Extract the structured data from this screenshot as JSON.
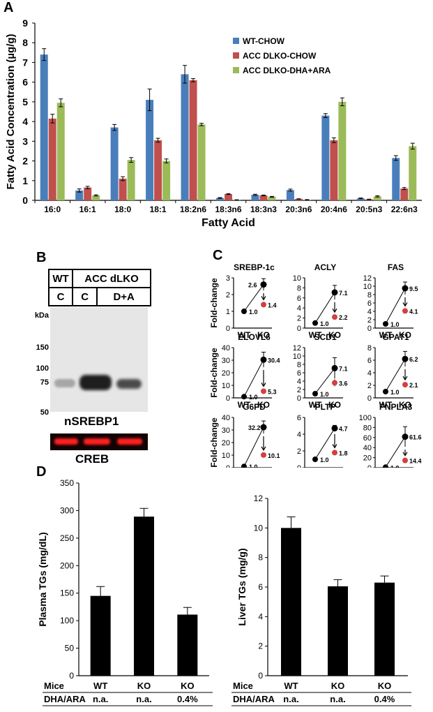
{
  "panels": {
    "a": "A",
    "b": "B",
    "c": "C",
    "d": "D"
  },
  "colors": {
    "wt_chow": "#4a7ebb",
    "dlko_chow": "#c0504d",
    "dlko_dha": "#9bbb59",
    "black": "#000000",
    "ko_treated": "#d43f3f",
    "creb_band": "#ff2020"
  },
  "chart_data": [
    {
      "panel": "A",
      "type": "bar",
      "xlabel": "Fatty Acid",
      "ylabel": "Fatty Acid Concentration (µg/g)",
      "ylim": [
        0,
        9
      ],
      "yticks": [
        0,
        1,
        2,
        3,
        4,
        5,
        6,
        7,
        8,
        9
      ],
      "legend_position": "top-right",
      "categories": [
        "16:0",
        "16:1",
        "18:0",
        "18:1",
        "18:2n6",
        "18:3n6",
        "18:3n3",
        "20:3n6",
        "20:4n6",
        "20:5n3",
        "22:6n3"
      ],
      "series": [
        {
          "name": "WT-CHOW",
          "values": [
            7.4,
            0.5,
            3.7,
            5.1,
            6.4,
            0.12,
            0.28,
            0.52,
            4.3,
            0.1,
            2.15
          ],
          "errors": [
            0.3,
            0.08,
            0.15,
            0.55,
            0.45,
            0.02,
            0.03,
            0.05,
            0.1,
            0.02,
            0.12
          ]
        },
        {
          "name": "ACC DLKO-CHOW",
          "values": [
            4.15,
            0.65,
            1.1,
            3.05,
            6.1,
            0.32,
            0.25,
            0.07,
            3.05,
            0.05,
            0.6
          ],
          "errors": [
            0.22,
            0.06,
            0.1,
            0.1,
            0.08,
            0.02,
            0.02,
            0.01,
            0.12,
            0.01,
            0.05
          ]
        },
        {
          "name": "ACC DLKO-DHA+ARA",
          "values": [
            4.95,
            0.25,
            2.05,
            2.0,
            3.85,
            0.02,
            0.18,
            0.03,
            5.0,
            0.2,
            2.75
          ],
          "errors": [
            0.2,
            0.03,
            0.12,
            0.1,
            0.06,
            0.01,
            0.02,
            0.01,
            0.2,
            0.03,
            0.15
          ]
        }
      ]
    },
    {
      "panel": "C",
      "type": "line",
      "title": "SREBP-1c",
      "ylabel": "Fold-change",
      "ylim": [
        0,
        3
      ],
      "yticks": [
        0,
        1,
        2,
        3
      ],
      "x": [
        "WT",
        "KO"
      ],
      "values": [
        1.0,
        2.6
      ],
      "errors": [
        0,
        0.35
      ],
      "ko_treated": 1.4,
      "ko_treated_error": 0.08,
      "labels": [
        "1.0",
        "2.6",
        "1.4"
      ]
    },
    {
      "panel": "C",
      "type": "line",
      "title": "ACLY",
      "ylabel": "",
      "ylim": [
        0,
        10
      ],
      "yticks": [
        0,
        2,
        4,
        6,
        8,
        10
      ],
      "x": [
        "WT",
        "KO"
      ],
      "values": [
        1.0,
        7.1
      ],
      "errors": [
        0,
        1.4
      ],
      "ko_treated": 2.2,
      "ko_treated_error": 0.5,
      "labels": [
        "1.0",
        "7.1",
        "2.2"
      ]
    },
    {
      "panel": "C",
      "type": "line",
      "title": "FAS",
      "ylabel": "",
      "ylim": [
        0,
        12
      ],
      "yticks": [
        0,
        2,
        4,
        6,
        8,
        10,
        12
      ],
      "x": [
        "WT",
        "KO"
      ],
      "values": [
        1.0,
        9.5
      ],
      "errors": [
        0,
        1.5
      ],
      "ko_treated": 4.1,
      "ko_treated_error": 0.5,
      "labels": [
        "1.0",
        "9.5",
        "4.1"
      ]
    },
    {
      "panel": "C",
      "type": "line",
      "title": "ELOVL6",
      "ylabel": "Fold-change",
      "ylim": [
        0,
        40
      ],
      "yticks": [
        0,
        10,
        20,
        30,
        40
      ],
      "x": [
        "WT",
        "KO"
      ],
      "values": [
        1.0,
        30.4
      ],
      "errors": [
        0,
        6
      ],
      "ko_treated": 5.3,
      "ko_treated_error": 0.8,
      "labels": [
        "1.0",
        "30.4",
        "5.3"
      ]
    },
    {
      "panel": "C",
      "type": "line",
      "title": "SCD1",
      "ylabel": "",
      "ylim": [
        0,
        12
      ],
      "yticks": [
        0,
        2,
        4,
        6,
        8,
        10,
        12
      ],
      "x": [
        "WT",
        "KO"
      ],
      "values": [
        1.0,
        7.1
      ],
      "errors": [
        0,
        2.5
      ],
      "ko_treated": 3.6,
      "ko_treated_error": 0.8,
      "labels": [
        "1.0",
        "7.1",
        "3.6"
      ]
    },
    {
      "panel": "C",
      "type": "line",
      "title": "GPAT1",
      "ylabel": "",
      "ylim": [
        0,
        8
      ],
      "yticks": [
        0,
        2,
        4,
        6,
        8
      ],
      "x": [
        "WT",
        "KO"
      ],
      "values": [
        1.0,
        6.2
      ],
      "errors": [
        0,
        1.2
      ],
      "ko_treated": 2.1,
      "ko_treated_error": 0.4,
      "labels": [
        "1.0",
        "6.2",
        "2.1"
      ]
    },
    {
      "panel": "C",
      "type": "line",
      "title": "G6PD",
      "ylabel": "Fold-change",
      "ylim": [
        0,
        40
      ],
      "yticks": [
        0,
        10,
        20,
        30,
        40
      ],
      "x": [
        "WT",
        "KO"
      ],
      "values": [
        1.0,
        32.2
      ],
      "errors": [
        0,
        5
      ],
      "ko_treated": 10.1,
      "ko_treated_error": 1.8,
      "labels": [
        "1.0",
        "32.2",
        "10.1"
      ]
    },
    {
      "panel": "C",
      "type": "line",
      "title": "PLTP",
      "ylabel": "",
      "ylim": [
        0,
        6
      ],
      "yticks": [
        0,
        2,
        4,
        6
      ],
      "x": [
        "WT",
        "KO"
      ],
      "values": [
        1.0,
        4.7
      ],
      "errors": [
        0,
        0.35
      ],
      "ko_treated": 1.8,
      "ko_treated_error": 0.15,
      "labels": [
        "1.0",
        "4.7",
        "1.8"
      ]
    },
    {
      "panel": "C",
      "type": "line",
      "title": "PNPLA3",
      "ylabel": "",
      "ylim": [
        0,
        100
      ],
      "yticks": [
        0,
        20,
        40,
        60,
        80,
        100
      ],
      "x": [
        "WT",
        "KO"
      ],
      "values": [
        1.0,
        61.6
      ],
      "errors": [
        0,
        20
      ],
      "ko_treated": 14.4,
      "ko_treated_error": 5,
      "labels": [
        "1.0",
        "61.6",
        "14.4"
      ]
    },
    {
      "panel": "D",
      "type": "bar",
      "ylabel": "Plasma TGs (mg/dL)",
      "ylim": [
        0,
        350
      ],
      "yticks": [
        0,
        50,
        100,
        150,
        200,
        250,
        300,
        350
      ],
      "categories": [
        "WT",
        "KO",
        "KO"
      ],
      "values": [
        145,
        289,
        111
      ],
      "errors": [
        17,
        15,
        13
      ],
      "row1_label": "Mice",
      "row2_label": "DHA/ARA",
      "row2": [
        "n.a.",
        "n.a.",
        "0.4%"
      ]
    },
    {
      "panel": "D",
      "type": "bar",
      "ylabel": "Liver TGs (mg/g)",
      "ylim": [
        0,
        12
      ],
      "yticks": [
        0,
        2,
        4,
        6,
        8,
        10,
        12
      ],
      "categories": [
        "WT",
        "KO",
        "KO"
      ],
      "values": [
        10.0,
        6.05,
        6.3
      ],
      "errors": [
        0.75,
        0.45,
        0.45
      ],
      "row1_label": "Mice",
      "row2_label": "DHA/ARA",
      "row2": [
        "n.a.",
        "n.a.",
        "0.4%"
      ]
    }
  ],
  "blot": {
    "header_row1": [
      "WT",
      "ACC dLKO"
    ],
    "header_row2": [
      "C",
      "C",
      "D+A"
    ],
    "kda_label": "kDa",
    "markers": [
      "150",
      "100",
      "75",
      "50"
    ],
    "main_label": "nSREBP1",
    "loading_label": "CREB"
  }
}
